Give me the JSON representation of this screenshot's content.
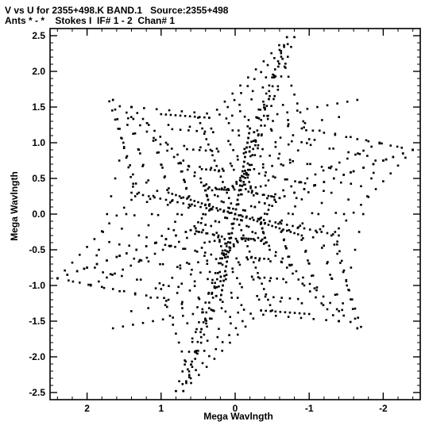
{
  "chart_data": {
    "type": "scatter",
    "title": "V vs U for 2355+498.K BAND.1   Source:2355+498",
    "subtitle": "Ants * - *    Stokes I  IF# 1 - 2  Chan# 1",
    "xlabel": "Mega Wavlngth",
    "ylabel": "Mega Wavlngth",
    "xlim": [
      2.5,
      -2.5
    ],
    "ylim": [
      -2.6,
      2.6
    ],
    "xticks": [
      "2",
      "1",
      "0",
      "-1",
      "-2"
    ],
    "xtick_values": [
      2,
      1,
      0,
      -1,
      -2
    ],
    "yticks": [
      "2.5",
      "2.0",
      "1.5",
      "1.0",
      "0.5",
      "0.0",
      "-0.5",
      "-1.0",
      "-1.5",
      "-2.0",
      "-2.5"
    ],
    "ytick_values": [
      2.5,
      2.0,
      1.5,
      1.0,
      0.5,
      0.0,
      -0.5,
      -1.0,
      -1.5,
      -2.0,
      -2.5
    ],
    "grid": false,
    "marker_color": "#000000",
    "tracks": [
      {
        "center": [
          0,
          0
        ],
        "outer": [
          -0.7,
          2.48
        ],
        "ring": 0
      },
      {
        "center": [
          0,
          0
        ],
        "outer": [
          -1.95,
          1.0
        ],
        "ring": 0
      },
      {
        "center": [
          0,
          0
        ],
        "outer": [
          -2.4,
          0.9
        ],
        "ring": 0
      },
      {
        "center": [
          0,
          0
        ],
        "outer": [
          -1.4,
          -1.5
        ],
        "ring": 0
      },
      {
        "center": [
          0,
          0
        ],
        "outer": [
          0.8,
          -2.48
        ],
        "ring": 0
      },
      {
        "center": [
          0,
          0
        ],
        "outer": [
          2.4,
          -0.9
        ],
        "ring": 0
      },
      {
        "center": [
          0,
          0
        ],
        "outer": [
          1.65,
          1.6
        ],
        "ring": 0
      },
      {
        "center": [
          0,
          0
        ],
        "outer": [
          0.5,
          1.35
        ],
        "ring": 0
      },
      {
        "center": [
          0,
          0
        ],
        "outer": [
          -0.9,
          -0.3
        ],
        "ring": 0
      },
      {
        "center": [
          0,
          0
        ],
        "outer": [
          1.4,
          0.3
        ],
        "ring": 0
      },
      {
        "center": [
          0,
          0
        ],
        "outer": [
          0.2,
          -1.2
        ],
        "ring": 0
      },
      {
        "center": [
          0,
          0
        ],
        "outer": [
          -0.2,
          1.2
        ],
        "ring": 0
      }
    ],
    "star_arms": [
      {
        "from": [
          -0.7,
          2.48
        ],
        "to": [
          -0.3,
          1.35
        ]
      },
      {
        "from": [
          -0.3,
          1.35
        ],
        "to": [
          -1.65,
          1.6
        ]
      },
      {
        "from": [
          -0.9,
          1.2
        ],
        "to": [
          -2.4,
          0.9
        ]
      },
      {
        "from": [
          -1.95,
          1.0
        ],
        "to": [
          -1.4,
          -1.5
        ]
      },
      {
        "from": [
          -1.3,
          -0.3
        ],
        "to": [
          -1.7,
          -1.58
        ]
      },
      {
        "from": [
          -1.4,
          -1.5
        ],
        "to": [
          0.3,
          -1.35
        ]
      },
      {
        "from": [
          -0.1,
          -1.5
        ],
        "to": [
          0.8,
          -2.48
        ]
      },
      {
        "from": [
          0.6,
          -2.3
        ],
        "to": [
          1.0,
          -1.05
        ]
      },
      {
        "from": [
          0.3,
          -1.35
        ],
        "to": [
          2.4,
          -0.9
        ]
      },
      {
        "from": [
          1.65,
          1.6
        ],
        "to": [
          1.35,
          0.25
        ]
      },
      {
        "from": [
          1.4,
          0.2
        ],
        "to": [
          2.4,
          -0.9
        ]
      },
      {
        "from": [
          1.0,
          1.4
        ],
        "to": [
          0.35,
          1.35
        ]
      },
      {
        "from": [
          0.35,
          1.35
        ],
        "to": [
          -0.7,
          2.48
        ]
      }
    ]
  }
}
